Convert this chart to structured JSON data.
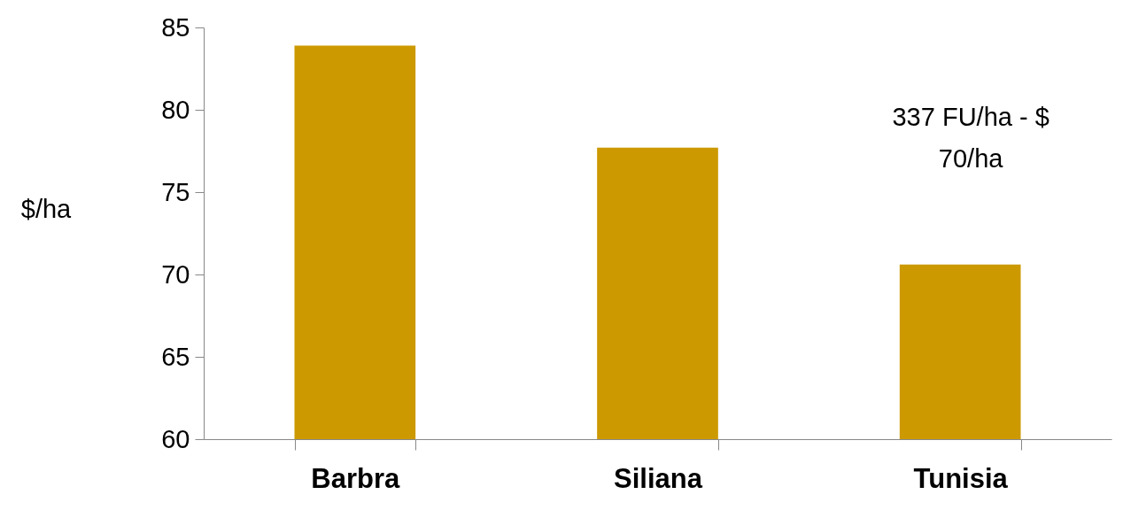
{
  "chart_data": {
    "type": "bar",
    "ylabel": "$/ha",
    "categories": [
      "Barbra",
      "Siliana",
      "Tunisia"
    ],
    "values": [
      83.9,
      77.7,
      70.6
    ],
    "color": "#cc9900",
    "ylim": [
      60,
      85
    ],
    "yticks": [
      60,
      65,
      70,
      75,
      80,
      85
    ],
    "grid": false,
    "annotations": [
      "337 FU/ha - $\n70/ha"
    ]
  }
}
